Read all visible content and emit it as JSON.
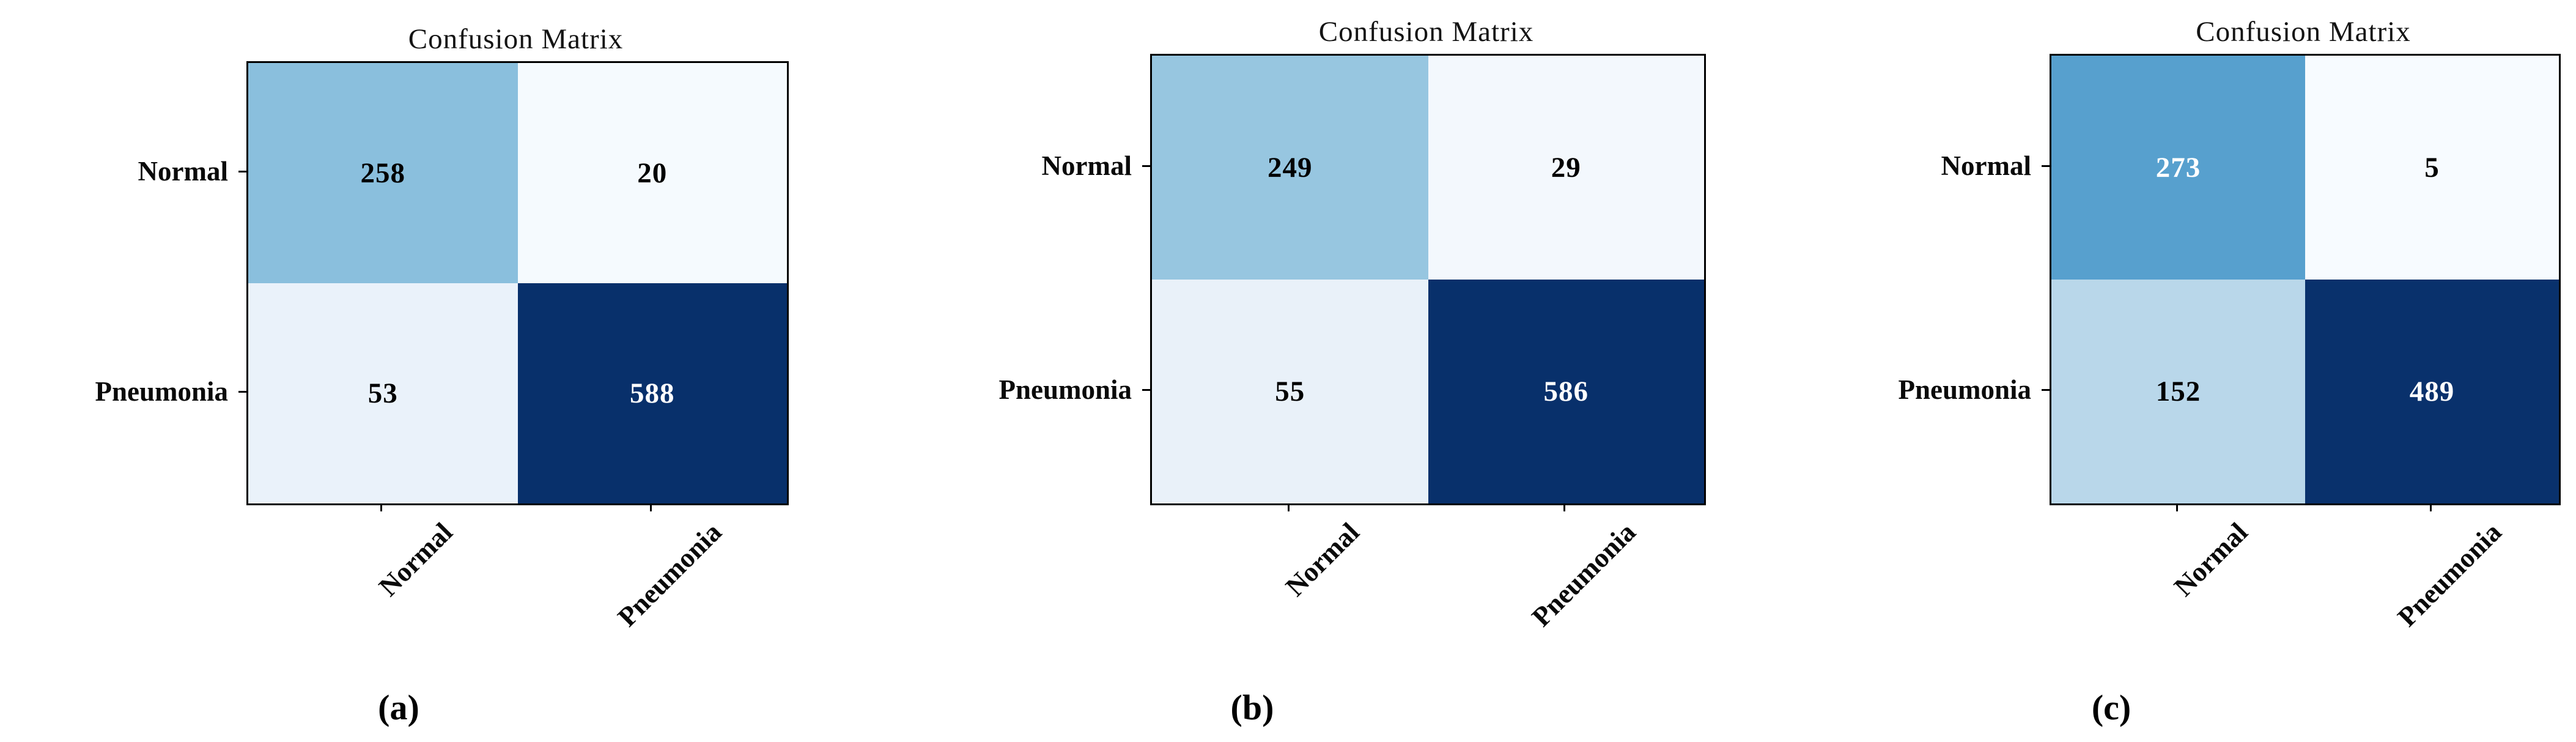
{
  "figure": {
    "background": "#ffffff",
    "matrix_border_color": "#000000",
    "colormap": "Blues",
    "dark_cell_color": "#08306b"
  },
  "panels": [
    {
      "id": "a",
      "title": "Confusion Matrix",
      "caption": "(a)",
      "row_labels": [
        "Normal",
        "Pneumonia"
      ],
      "col_labels": [
        "Normal",
        "Pneumonia"
      ],
      "cells": [
        {
          "value": "258",
          "bg": "#8abfdd",
          "fg": "#000000"
        },
        {
          "value": "20",
          "bg": "#f5fafe",
          "fg": "#000000"
        },
        {
          "value": "53",
          "bg": "#eaf2fa",
          "fg": "#000000"
        },
        {
          "value": "588",
          "bg": "#08306b",
          "fg": "#ffffff"
        }
      ]
    },
    {
      "id": "b",
      "title": "Confusion Matrix",
      "caption": "(b)",
      "row_labels": [
        "Normal",
        "Pneumonia"
      ],
      "col_labels": [
        "Normal",
        "Pneumonia"
      ],
      "cells": [
        {
          "value": "249",
          "bg": "#97c6e0",
          "fg": "#000000"
        },
        {
          "value": "29",
          "bg": "#f3f8fd",
          "fg": "#000000"
        },
        {
          "value": "55",
          "bg": "#e9f1f9",
          "fg": "#000000"
        },
        {
          "value": "586",
          "bg": "#08306b",
          "fg": "#ffffff"
        }
      ]
    },
    {
      "id": "c",
      "title": "Confusion Matrix",
      "caption": "(c)",
      "row_labels": [
        "Normal",
        "Pneumonia"
      ],
      "col_labels": [
        "Normal",
        "Pneumonia"
      ],
      "cells": [
        {
          "value": "273",
          "bg": "#57a0ce",
          "fg": "#ffffff"
        },
        {
          "value": "5",
          "bg": "#f7fbff",
          "fg": "#000000"
        },
        {
          "value": "152",
          "bg": "#b9d7ea",
          "fg": "#000000"
        },
        {
          "value": "489",
          "bg": "#09316c",
          "fg": "#ffffff"
        }
      ]
    }
  ],
  "chart_data": [
    {
      "type": "heatmap",
      "title": "Confusion Matrix",
      "caption": "(a)",
      "x_categories": [
        "Normal",
        "Pneumonia"
      ],
      "y_categories": [
        "Normal",
        "Pneumonia"
      ],
      "values": [
        [
          258,
          20
        ],
        [
          53,
          588
        ]
      ],
      "colormap": "Blues",
      "xlabel": "",
      "ylabel": "",
      "legend": "none",
      "grid": false
    },
    {
      "type": "heatmap",
      "title": "Confusion Matrix",
      "caption": "(b)",
      "x_categories": [
        "Normal",
        "Pneumonia"
      ],
      "y_categories": [
        "Normal",
        "Pneumonia"
      ],
      "values": [
        [
          249,
          29
        ],
        [
          55,
          586
        ]
      ],
      "colormap": "Blues",
      "xlabel": "",
      "ylabel": "",
      "legend": "none",
      "grid": false
    },
    {
      "type": "heatmap",
      "title": "Confusion Matrix",
      "caption": "(c)",
      "x_categories": [
        "Normal",
        "Pneumonia"
      ],
      "y_categories": [
        "Normal",
        "Pneumonia"
      ],
      "values": [
        [
          273,
          5
        ],
        [
          152,
          489
        ]
      ],
      "colormap": "Blues",
      "xlabel": "",
      "ylabel": "",
      "legend": "none",
      "grid": false
    }
  ]
}
